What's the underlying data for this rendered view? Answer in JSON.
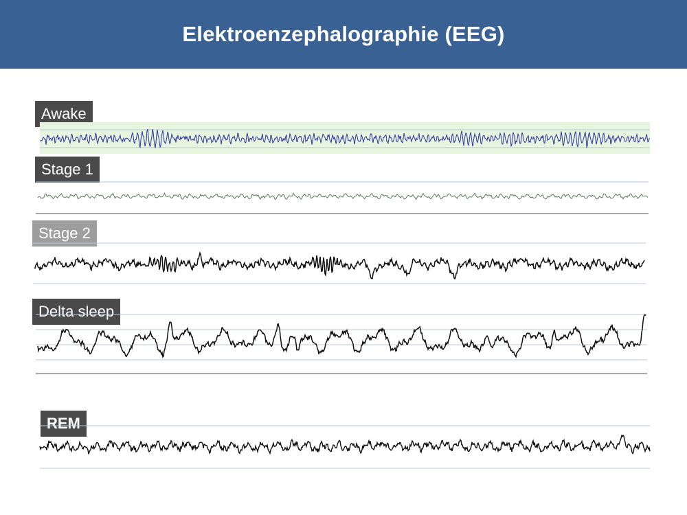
{
  "header": {
    "title": "Elektroenzephalographie (EEG)",
    "background_color": "#3a6194"
  },
  "stages": [
    {
      "label": "Awake",
      "label_color": "#4a4a4a",
      "trace_color": "#2f2fa0",
      "band_color": "#e6f5de",
      "pattern": "fast-low-amplitude"
    },
    {
      "label": "Stage 1",
      "label_color": "#4a4a4a",
      "trace_color": "#5a7a5a",
      "pattern": "low-amplitude"
    },
    {
      "label": "Stage 2",
      "label_color": "#9e9e9e",
      "trace_color": "#111111",
      "pattern": "spindles-k-complexes"
    },
    {
      "label": "Delta sleep",
      "label_color": "#4a4a4a",
      "trace_color": "#111111",
      "pattern": "slow-high-amplitude"
    },
    {
      "label": "REM",
      "label_color": "#4a4a4a",
      "trace_color": "#111111",
      "pattern": "mixed-frequency"
    }
  ],
  "guide_line_color": "#b8c7d6",
  "baseline_color": "#a9a9a9"
}
